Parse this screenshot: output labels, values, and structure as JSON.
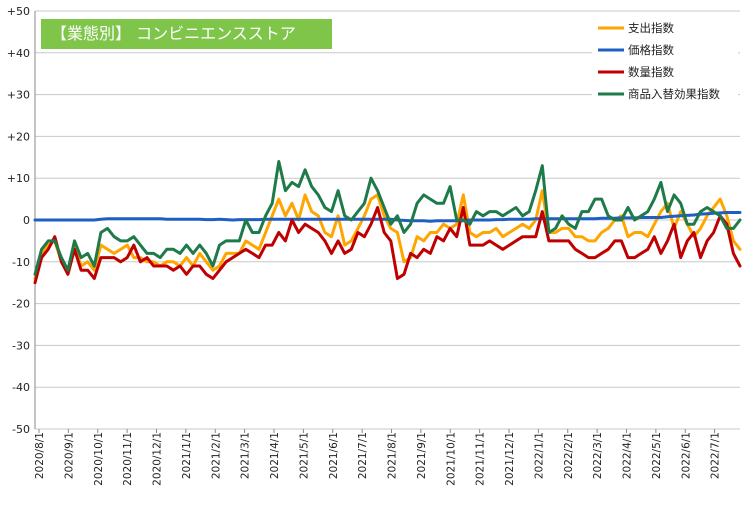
{
  "chart_data": {
    "type": "line",
    "title": "【業態別】 コンビニエンスストア",
    "ylim": [
      -50,
      50
    ],
    "yticks": [
      "+50",
      "+40",
      "+30",
      "+20",
      "+10",
      "0",
      "-10",
      "-20",
      "-30",
      "-40",
      "-50"
    ],
    "ytick_values": [
      50,
      40,
      30,
      20,
      10,
      0,
      -10,
      -20,
      -30,
      -40,
      -50
    ],
    "xtick_labels": [
      "2020/8/1",
      "2020/9/1",
      "2020/10/1",
      "2020/11/1",
      "2020/12/1",
      "2021/1/1",
      "2021/2/1",
      "2021/3/1",
      "2021/4/1",
      "2021/5/1",
      "2021/6/1",
      "2021/7/1",
      "2021/8/1",
      "2021/9/1",
      "2021/10/1",
      "2021/11/1",
      "2021/12/1",
      "2022/1/1",
      "2022/2/1",
      "2022/3/1",
      "2022/4/1",
      "2022/5/1",
      "2022/6/1",
      "2022/7/1"
    ],
    "grid": true,
    "legend_position": "top-right",
    "series": [
      {
        "name": "支出指数",
        "color": "#ffa500",
        "values": [
          -14,
          -8,
          -6,
          -5,
          -10,
          -12,
          -6,
          -11,
          -10,
          -12,
          -6,
          -7,
          -8,
          -7,
          -6,
          -9,
          -9,
          -10,
          -10,
          -11,
          -10,
          -10,
          -11,
          -9,
          -11,
          -8,
          -10,
          -12,
          -11,
          -8,
          -8,
          -8,
          -5,
          -6,
          -7,
          -3,
          1,
          5,
          1,
          4,
          0,
          6,
          2,
          1,
          -3,
          -4,
          1,
          -6,
          -5,
          -2,
          1,
          5,
          6,
          1,
          -2,
          -3,
          -10,
          -9,
          -4,
          -5,
          -3,
          -3,
          -1,
          -2,
          -1,
          6,
          -3,
          -4,
          -3,
          -3,
          -2,
          -4,
          -3,
          -2,
          -1,
          -2,
          0,
          7,
          -3,
          -3,
          -2,
          -2,
          -4,
          -4,
          -5,
          -5,
          -3,
          -2,
          0,
          1,
          -4,
          -3,
          -3,
          -4,
          -1,
          2,
          4,
          -2,
          2,
          -1,
          -4,
          -2,
          1,
          3,
          5,
          1,
          -5,
          -7
        ]
      },
      {
        "name": "価格指数",
        "color": "#1f5fc4",
        "values": [
          0,
          0,
          0,
          0,
          0,
          0,
          0,
          0,
          0,
          0,
          0.2,
          0.3,
          0.3,
          0.3,
          0.3,
          0.3,
          0.3,
          0.3,
          0.3,
          0.3,
          0.2,
          0.2,
          0.2,
          0.2,
          0.2,
          0.2,
          0.1,
          0.1,
          0.2,
          0.1,
          0,
          0.1,
          0.1,
          0.1,
          0.1,
          0.2,
          0.2,
          0.2,
          0.2,
          0.2,
          0.2,
          0.2,
          0.2,
          0.2,
          0.2,
          0.2,
          0.2,
          0.2,
          0.2,
          0.2,
          0.2,
          0.2,
          0.2,
          0.2,
          0.2,
          0,
          -0.1,
          -0.2,
          -0.2,
          -0.2,
          -0.3,
          -0.2,
          -0.2,
          -0.2,
          -0.2,
          -0.2,
          0,
          0,
          0,
          0,
          0.1,
          0.1,
          0.2,
          0.2,
          0.2,
          0.2,
          0.3,
          0.3,
          0.3,
          0.3,
          0.3,
          0.3,
          0.3,
          0.3,
          0.3,
          0.3,
          0.4,
          0.4,
          0.4,
          0.5,
          0.5,
          0.5,
          0.6,
          0.6,
          0.6,
          0.6,
          0.8,
          0.9,
          1,
          1.1,
          1.2,
          1.4,
          1.5,
          1.6,
          1.7,
          1.8,
          1.8,
          1.8
        ]
      },
      {
        "name": "数量指数",
        "color": "#c00000",
        "values": [
          -15,
          -9,
          -7,
          -4,
          -10,
          -13,
          -7,
          -12,
          -12,
          -14,
          -9,
          -9,
          -9,
          -10,
          -9,
          -6,
          -10,
          -9,
          -11,
          -11,
          -11,
          -12,
          -11,
          -13,
          -11,
          -11,
          -13,
          -14,
          -12,
          -10,
          -9,
          -8,
          -7,
          -8,
          -9,
          -6,
          -6,
          -3,
          -5,
          0,
          -3,
          -1,
          -2,
          -3,
          -5,
          -8,
          -5,
          -8,
          -7,
          -3,
          -4,
          -1,
          3,
          -3,
          -5,
          -14,
          -13,
          -8,
          -9,
          -7,
          -8,
          -4,
          -5,
          -2,
          -4,
          3,
          -6,
          -6,
          -6,
          -5,
          -6,
          -7,
          -6,
          -5,
          -4,
          -4,
          -4,
          2,
          -5,
          -5,
          -5,
          -5,
          -7,
          -8,
          -9,
          -9,
          -8,
          -7,
          -5,
          -5,
          -9,
          -9,
          -8,
          -7,
          -4,
          -8,
          -5,
          -1,
          -9,
          -5,
          -3,
          -9,
          -5,
          -3,
          1,
          -1,
          -8,
          -11
        ]
      },
      {
        "name": "商品入替効果指数",
        "color": "#1f7a4a",
        "values": [
          -13,
          -7,
          -5,
          -5,
          -9,
          -12,
          -5,
          -9,
          -8,
          -11,
          -3,
          -2,
          -4,
          -5,
          -5,
          -4,
          -6,
          -8,
          -8,
          -9,
          -7,
          -7,
          -8,
          -6,
          -8,
          -6,
          -8,
          -11,
          -6,
          -5,
          -5,
          -5,
          0,
          -3,
          -3,
          1,
          4,
          14,
          7,
          9,
          8,
          12,
          8,
          6,
          3,
          2,
          7,
          1,
          0,
          2,
          4,
          10,
          7,
          3,
          -1,
          1,
          -3,
          -1,
          4,
          6,
          5,
          4,
          4,
          8,
          0,
          0,
          -1,
          2,
          1,
          2,
          2,
          1,
          2,
          3,
          1,
          2,
          7,
          13,
          -3,
          -2,
          1,
          -1,
          -2,
          2,
          2,
          5,
          5,
          1,
          0,
          0,
          3,
          0,
          1,
          2,
          5,
          9,
          2,
          6,
          4,
          -1,
          -1,
          2,
          3,
          2,
          1,
          -2,
          -2,
          0
        ]
      }
    ]
  }
}
